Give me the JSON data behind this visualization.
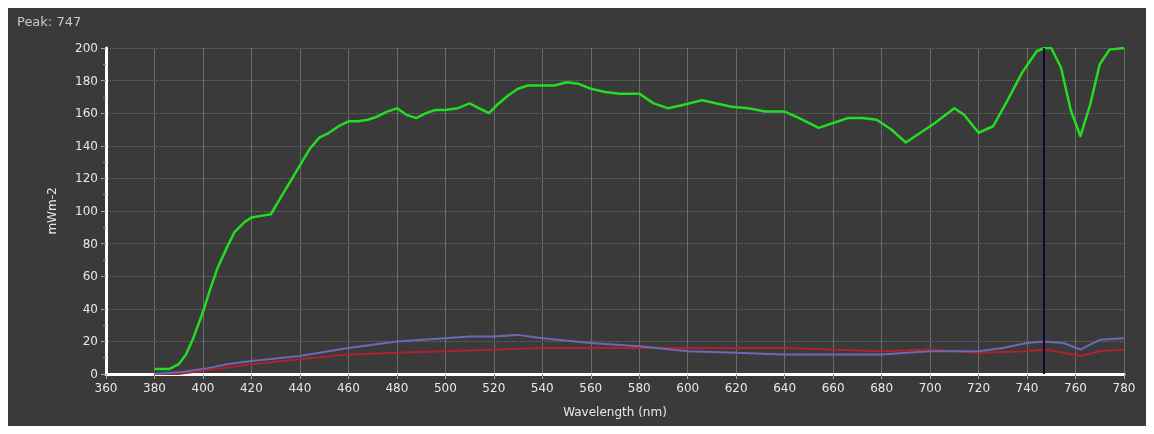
{
  "chart_data": {
    "type": "line",
    "title": "Peak: 747",
    "xlabel": "Wavelength (nm)",
    "ylabel": "mWm-2",
    "xlim": [
      360,
      780
    ],
    "xticks": [
      360,
      380,
      400,
      420,
      440,
      460,
      480,
      500,
      520,
      540,
      560,
      580,
      600,
      620,
      640,
      660,
      680,
      700,
      720,
      740,
      760,
      780
    ],
    "ylim": [
      0,
      200
    ],
    "yticks": [
      0,
      20,
      40,
      60,
      80,
      100,
      120,
      140,
      160,
      180,
      200
    ],
    "grid": true,
    "marker": "none",
    "line_style": "solid",
    "ref_lines": [
      {
        "axis": "x",
        "value": 747,
        "color": "#0a0a30"
      }
    ],
    "series": [
      {
        "color": "#22dd22",
        "x": [
          380,
          386,
          390,
          393,
          396,
          400,
          403,
          406,
          410,
          413,
          417,
          420,
          424,
          428,
          432,
          436,
          440,
          444,
          448,
          452,
          456,
          460,
          464,
          468,
          472,
          476,
          480,
          484,
          488,
          492,
          496,
          500,
          505,
          510,
          514,
          518,
          522,
          526,
          530,
          534,
          540,
          545,
          550,
          555,
          560,
          566,
          572,
          580,
          586,
          592,
          598,
          606,
          612,
          618,
          625,
          632,
          640,
          646,
          654,
          660,
          666,
          672,
          678,
          684,
          690,
          696,
          702,
          710,
          714,
          720,
          726,
          732,
          738,
          744,
          747,
          750,
          754,
          758,
          762,
          766,
          770,
          774,
          780
        ],
        "values": [
          3,
          3,
          6,
          12,
          22,
          38,
          52,
          65,
          78,
          87,
          93,
          96,
          97,
          98,
          108,
          118,
          128,
          138,
          145,
          148,
          152,
          155,
          155,
          156,
          158,
          161,
          163,
          159,
          157,
          160,
          162,
          162,
          163,
          166,
          163,
          160,
          166,
          171,
          175,
          177,
          177,
          177,
          179,
          178,
          175,
          173,
          172,
          172,
          166,
          163,
          165,
          168,
          166,
          164,
          163,
          161,
          161,
          157,
          151,
          154,
          157,
          157,
          156,
          150,
          142,
          148,
          154,
          163,
          159,
          148,
          152,
          168,
          185,
          198,
          200,
          200,
          188,
          162,
          146,
          165,
          190,
          199,
          200
        ]
      },
      {
        "color": "#6a6ab4",
        "x": [
          380,
          390,
          400,
          410,
          420,
          440,
          460,
          480,
          500,
          510,
          520,
          530,
          540,
          560,
          580,
          600,
          620,
          640,
          660,
          680,
          700,
          720,
          730,
          740,
          747,
          755,
          762,
          770,
          780
        ],
        "values": [
          0,
          1,
          3,
          6,
          8,
          11,
          16,
          20,
          22,
          23,
          23,
          24,
          22,
          19,
          17,
          14,
          13,
          12,
          12,
          12,
          14,
          14,
          16,
          19,
          20,
          19,
          15,
          21,
          22
        ]
      },
      {
        "color": "#b02030",
        "x": [
          380,
          390,
          400,
          420,
          440,
          460,
          480,
          500,
          540,
          560,
          580,
          600,
          640,
          680,
          700,
          720,
          740,
          747,
          755,
          762,
          770,
          780
        ],
        "values": [
          0,
          0,
          2,
          6,
          9,
          12,
          13,
          14,
          16,
          16,
          16,
          16,
          16,
          14,
          15,
          13,
          14,
          15,
          13,
          11,
          14,
          15
        ]
      }
    ]
  }
}
